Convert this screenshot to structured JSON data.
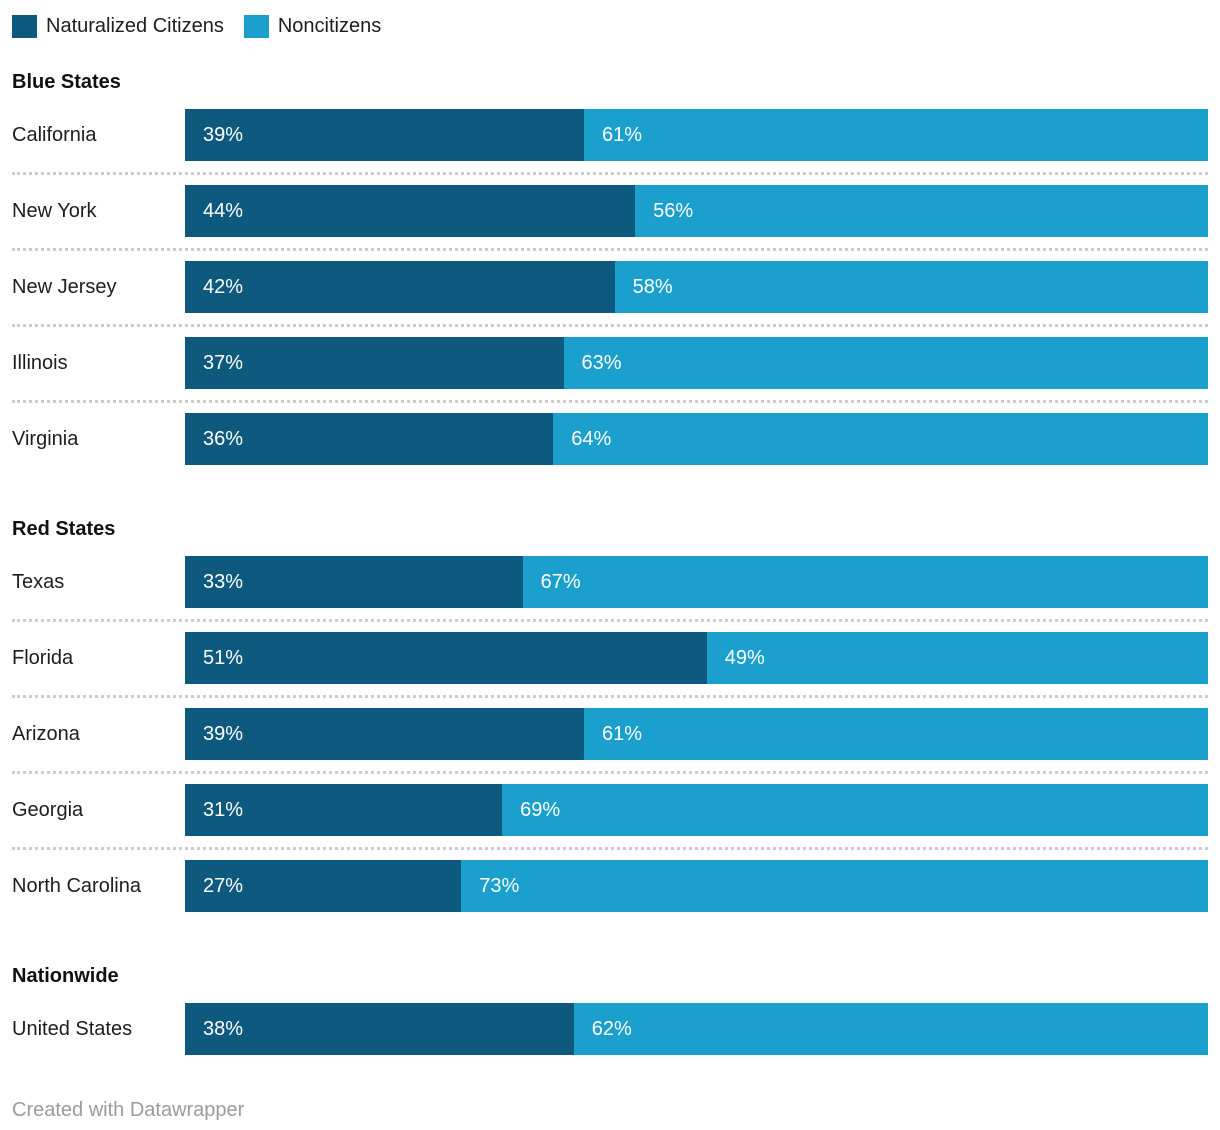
{
  "colors": {
    "naturalized": "#0e5a7e",
    "noncitizens": "#1ba0ce",
    "separator": "#cccccc",
    "value_text": "#ffffff",
    "footer_text": "#9b9b9b"
  },
  "legend": {
    "items": [
      {
        "label": "Naturalized Citizens",
        "color": "#0e5a7e"
      },
      {
        "label": "Noncitizens",
        "color": "#1ba0ce"
      }
    ]
  },
  "sections": [
    {
      "title": "Blue States",
      "rows": [
        {
          "label": "California",
          "segments": [
            {
              "series": "Naturalized Citizens",
              "pct": 39,
              "text": "39%"
            },
            {
              "series": "Noncitizens",
              "pct": 61,
              "text": "61%"
            }
          ]
        },
        {
          "label": "New York",
          "segments": [
            {
              "series": "Naturalized Citizens",
              "pct": 44,
              "text": "44%"
            },
            {
              "series": "Noncitizens",
              "pct": 56,
              "text": "56%"
            }
          ]
        },
        {
          "label": "New Jersey",
          "segments": [
            {
              "series": "Naturalized Citizens",
              "pct": 42,
              "text": "42%"
            },
            {
              "series": "Noncitizens",
              "pct": 58,
              "text": "58%"
            }
          ]
        },
        {
          "label": "Illinois",
          "segments": [
            {
              "series": "Naturalized Citizens",
              "pct": 37,
              "text": "37%"
            },
            {
              "series": "Noncitizens",
              "pct": 63,
              "text": "63%"
            }
          ]
        },
        {
          "label": "Virginia",
          "segments": [
            {
              "series": "Naturalized Citizens",
              "pct": 36,
              "text": "36%"
            },
            {
              "series": "Noncitizens",
              "pct": 64,
              "text": "64%"
            }
          ]
        }
      ]
    },
    {
      "title": "Red States",
      "rows": [
        {
          "label": "Texas",
          "segments": [
            {
              "series": "Naturalized Citizens",
              "pct": 33,
              "text": "33%"
            },
            {
              "series": "Noncitizens",
              "pct": 67,
              "text": "67%"
            }
          ]
        },
        {
          "label": "Florida",
          "segments": [
            {
              "series": "Naturalized Citizens",
              "pct": 51,
              "text": "51%"
            },
            {
              "series": "Noncitizens",
              "pct": 49,
              "text": "49%"
            }
          ]
        },
        {
          "label": "Arizona",
          "segments": [
            {
              "series": "Naturalized Citizens",
              "pct": 39,
              "text": "39%"
            },
            {
              "series": "Noncitizens",
              "pct": 61,
              "text": "61%"
            }
          ]
        },
        {
          "label": "Georgia",
          "segments": [
            {
              "series": "Naturalized Citizens",
              "pct": 31,
              "text": "31%"
            },
            {
              "series": "Noncitizens",
              "pct": 69,
              "text": "69%"
            }
          ]
        },
        {
          "label": "North Carolina",
          "segments": [
            {
              "series": "Naturalized Citizens",
              "pct": 27,
              "text": "27%"
            },
            {
              "series": "Noncitizens",
              "pct": 73,
              "text": "73%"
            }
          ]
        }
      ]
    },
    {
      "title": "Nationwide",
      "rows": [
        {
          "label": "United States",
          "segments": [
            {
              "series": "Naturalized Citizens",
              "pct": 38,
              "text": "38%"
            },
            {
              "series": "Noncitizens",
              "pct": 62,
              "text": "62%"
            }
          ]
        }
      ]
    }
  ],
  "footer": {
    "attribution": "Created with Datawrapper"
  },
  "chart_data": {
    "type": "bar",
    "stacked": true,
    "orientation": "horizontal",
    "unit": "%",
    "xlim": [
      0,
      100
    ],
    "grid": false,
    "legend_position": "top",
    "series_names": [
      "Naturalized Citizens",
      "Noncitizens"
    ],
    "series_colors": [
      "#0e5a7e",
      "#1ba0ce"
    ],
    "groups": [
      {
        "title": "Blue States",
        "categories": [
          "California",
          "New York",
          "New Jersey",
          "Illinois",
          "Virginia"
        ],
        "series": [
          {
            "name": "Naturalized Citizens",
            "values": [
              39,
              44,
              42,
              37,
              36
            ]
          },
          {
            "name": "Noncitizens",
            "values": [
              61,
              56,
              58,
              63,
              64
            ]
          }
        ]
      },
      {
        "title": "Red States",
        "categories": [
          "Texas",
          "Florida",
          "Arizona",
          "Georgia",
          "North Carolina"
        ],
        "series": [
          {
            "name": "Naturalized Citizens",
            "values": [
              33,
              51,
              39,
              31,
              27
            ]
          },
          {
            "name": "Noncitizens",
            "values": [
              67,
              49,
              61,
              69,
              73
            ]
          }
        ]
      },
      {
        "title": "Nationwide",
        "categories": [
          "United States"
        ],
        "series": [
          {
            "name": "Naturalized Citizens",
            "values": [
              38
            ]
          },
          {
            "name": "Noncitizens",
            "values": [
              62
            ]
          }
        ]
      }
    ],
    "annotations": [
      "Created with Datawrapper"
    ]
  }
}
